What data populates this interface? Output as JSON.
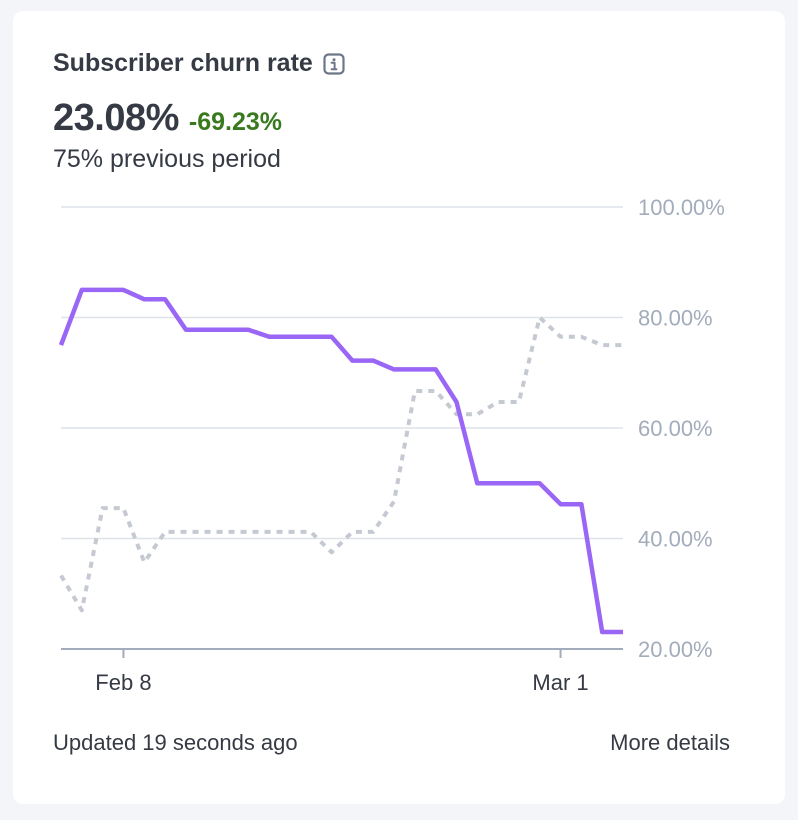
{
  "card": {
    "title": "Subscriber churn rate",
    "info_icon": "info-icon",
    "metric_value": "23.08%",
    "delta": "-69.23%",
    "previous_period": "75% previous period",
    "updated_text": "Updated 19 seconds ago",
    "more_details": "More details"
  },
  "colors": {
    "current_series": "#9966f5",
    "previous_series": "#c5c9d2",
    "gridline": "#dde3e9",
    "axis": "#a3acbb",
    "tick_label": "#a3acbb",
    "delta_positive": "#3a7a1f"
  },
  "chart_data": {
    "type": "line",
    "xlabel": "",
    "ylabel": "",
    "ylim": [
      20,
      100
    ],
    "y_ticks": [
      20,
      40,
      60,
      80,
      100
    ],
    "y_tick_labels": [
      "20.00%",
      "40.00%",
      "60.00%",
      "80.00%",
      "100.00%"
    ],
    "y_axis_position": "right",
    "x_range": [
      "Feb 5",
      "Mar 4"
    ],
    "x_ticks": [
      "Feb 8",
      "Mar 1"
    ],
    "grid": true,
    "series": [
      {
        "role": "current",
        "style": "solid",
        "x": [
          "Feb 5",
          "Feb 6",
          "Feb 7",
          "Feb 8",
          "Feb 9",
          "Feb 10",
          "Feb 11",
          "Feb 12",
          "Feb 13",
          "Feb 14",
          "Feb 15",
          "Feb 16",
          "Feb 17",
          "Feb 18",
          "Feb 19",
          "Feb 20",
          "Feb 21",
          "Feb 22",
          "Feb 23",
          "Feb 24",
          "Feb 25",
          "Feb 26",
          "Feb 27",
          "Feb 28",
          "Mar 1",
          "Mar 2",
          "Mar 3",
          "Mar 4"
        ],
        "values": [
          75,
          85,
          85,
          85,
          83.3,
          83.3,
          77.8,
          77.8,
          77.8,
          77.8,
          76.5,
          76.5,
          76.5,
          76.5,
          72.2,
          72.2,
          70.6,
          70.6,
          70.6,
          64.7,
          50,
          50,
          50,
          50,
          46.2,
          46.2,
          23.08,
          23.08
        ]
      },
      {
        "role": "previous",
        "style": "dotted",
        "x": [
          "Feb 5",
          "Feb 6",
          "Feb 7",
          "Feb 8",
          "Feb 9",
          "Feb 10",
          "Feb 11",
          "Feb 12",
          "Feb 13",
          "Feb 14",
          "Feb 15",
          "Feb 16",
          "Feb 17",
          "Feb 18",
          "Feb 19",
          "Feb 20",
          "Feb 21",
          "Feb 22",
          "Feb 23",
          "Feb 24",
          "Feb 25",
          "Feb 26",
          "Feb 27",
          "Feb 28",
          "Mar 1",
          "Mar 2",
          "Mar 3",
          "Mar 4"
        ],
        "values": [
          33.3,
          27,
          45.5,
          45.5,
          35.7,
          41.2,
          41.2,
          41.2,
          41.2,
          41.2,
          41.2,
          41.2,
          41.2,
          37.5,
          41.2,
          41.2,
          46.7,
          66.7,
          66.7,
          62.5,
          62.5,
          64.7,
          64.7,
          80,
          76.5,
          76.5,
          75,
          75
        ]
      }
    ]
  }
}
